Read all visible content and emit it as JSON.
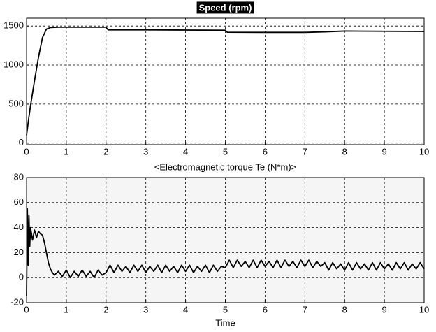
{
  "chart_data": [
    {
      "type": "line",
      "title": "Speed (rpm)",
      "color": "#000000",
      "grid": true,
      "xlim": [
        0,
        10
      ],
      "xticks": [
        0,
        1,
        2,
        3,
        4,
        5,
        6,
        7,
        8,
        9,
        10
      ],
      "ylim": [
        -20,
        1600
      ],
      "yticks": [
        0,
        500,
        1000,
        1500
      ],
      "x": [
        0,
        0.05,
        0.1,
        0.2,
        0.3,
        0.4,
        0.5,
        0.6,
        0.8,
        1,
        1.5,
        2,
        2.05,
        3,
        4,
        5,
        5.05,
        6,
        7,
        7.5,
        8,
        9,
        10
      ],
      "values": [
        100,
        300,
        480,
        800,
        1100,
        1350,
        1460,
        1480,
        1485,
        1485,
        1485,
        1485,
        1450,
        1450,
        1448,
        1445,
        1420,
        1418,
        1418,
        1425,
        1435,
        1432,
        1430
      ]
    },
    {
      "type": "line",
      "title": "<Electromagnetic torque Te (N*m)>",
      "xlabel": "Time",
      "color": "#000000",
      "grid": true,
      "xlim": [
        0,
        10
      ],
      "xticks": [
        0,
        1,
        2,
        3,
        4,
        5,
        6,
        7,
        8,
        9,
        10
      ],
      "ylim": [
        -20,
        80
      ],
      "yticks": [
        -20,
        0,
        20,
        40,
        60,
        80
      ],
      "x": [
        0,
        0.02,
        0.04,
        0.06,
        0.08,
        0.1,
        0.15,
        0.2,
        0.25,
        0.3,
        0.35,
        0.4,
        0.45,
        0.5,
        0.55,
        0.6,
        0.65,
        0.7,
        0.8,
        0.9,
        1,
        1.1,
        1.2,
        1.3,
        1.4,
        1.5,
        1.6,
        1.7,
        1.8,
        1.9,
        2,
        2.1,
        2.2,
        2.3,
        2.4,
        2.5,
        2.6,
        2.7,
        2.8,
        2.9,
        3,
        3.1,
        3.2,
        3.3,
        3.4,
        3.5,
        3.6,
        3.7,
        3.8,
        3.9,
        4,
        4.1,
        4.2,
        4.3,
        4.4,
        4.5,
        4.6,
        4.7,
        4.8,
        4.9,
        5,
        5.1,
        5.2,
        5.3,
        5.4,
        5.5,
        5.6,
        5.7,
        5.8,
        5.9,
        6,
        6.1,
        6.2,
        6.3,
        6.4,
        6.5,
        6.6,
        6.7,
        6.8,
        6.9,
        7,
        7.1,
        7.2,
        7.3,
        7.4,
        7.5,
        7.6,
        7.7,
        7.8,
        7.9,
        8,
        8.1,
        8.2,
        8.3,
        8.4,
        8.5,
        8.6,
        8.7,
        8.8,
        8.9,
        9,
        9.1,
        9.2,
        9.3,
        9.4,
        9.5,
        9.6,
        9.7,
        9.8,
        9.9,
        10
      ],
      "values": [
        -15,
        55,
        10,
        50,
        25,
        40,
        30,
        38,
        32,
        37,
        35,
        34,
        28,
        20,
        12,
        7,
        4,
        2,
        5,
        1,
        6,
        0,
        5,
        1,
        6,
        1,
        5,
        0,
        6,
        2,
        4,
        10,
        4,
        10,
        5,
        9,
        4,
        10,
        5,
        10,
        4,
        9,
        5,
        10,
        4,
        10,
        5,
        9,
        4,
        10,
        5,
        10,
        4,
        9,
        5,
        10,
        4,
        10,
        5,
        9,
        8,
        14,
        8,
        14,
        9,
        13,
        8,
        14,
        8,
        14,
        9,
        13,
        8,
        14,
        8,
        14,
        9,
        13,
        8,
        14,
        9,
        14,
        8,
        13,
        9,
        12,
        6,
        12,
        7,
        11,
        6,
        12,
        6,
        12,
        7,
        11,
        6,
        12,
        6,
        12,
        7,
        11,
        6,
        12,
        7,
        12,
        6,
        11,
        7,
        12,
        7
      ]
    }
  ]
}
